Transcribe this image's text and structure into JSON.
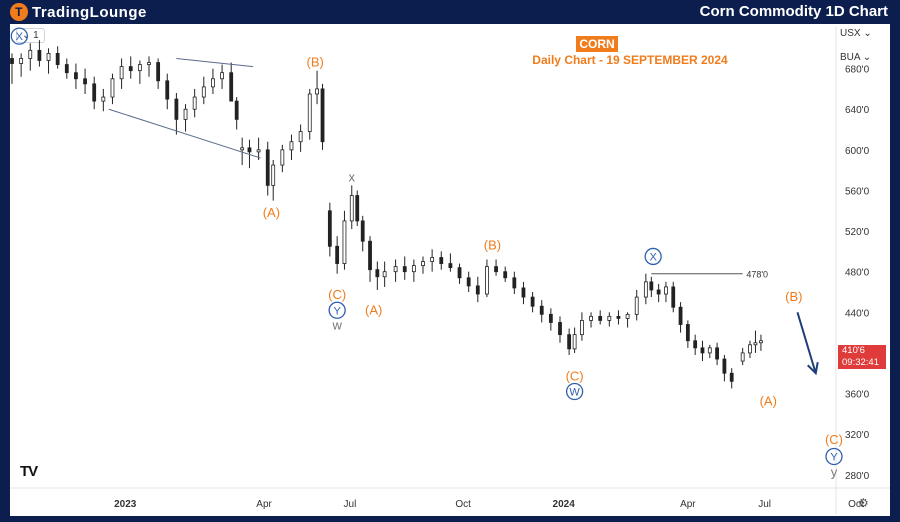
{
  "brand": {
    "part1": "TradingLounge",
    "logo_mark": "T"
  },
  "header": {
    "title": "Corn Commodity 1D Chart"
  },
  "toolbar": {
    "interval": "1",
    "currency": "USX",
    "unit": "BUA"
  },
  "chart_data": {
    "type": "candlestick",
    "title": "CORN",
    "subtitle": "Daily Chart - 19 SEPTEMBER 2024",
    "x_ticks": [
      "2023",
      "Apr",
      "Jul",
      "Oct",
      "2024",
      "Apr",
      "Jul",
      "Oct"
    ],
    "y_ticks": [
      "680'0",
      "640'0",
      "600'0",
      "560'0",
      "520'0",
      "480'0",
      "440'0",
      "400'0",
      "360'0",
      "320'0",
      "280'0"
    ],
    "ylim": [
      265,
      720
    ],
    "grid": false,
    "current_price": {
      "value": 410.75,
      "label": "410'6",
      "countdown": "09:32:41",
      "color": "#e03b3b"
    },
    "level_line": {
      "value": 478,
      "label": "478'0"
    },
    "series": [
      {
        "values": [
          [
            0,
            690,
            695,
            665,
            685
          ],
          [
            5,
            685,
            695,
            672,
            690
          ],
          [
            10,
            690,
            705,
            678,
            698
          ],
          [
            15,
            698,
            708,
            682,
            688
          ],
          [
            20,
            688,
            700,
            675,
            695
          ],
          [
            25,
            695,
            702,
            680,
            684
          ],
          [
            30,
            684,
            690,
            670,
            676
          ],
          [
            35,
            676,
            685,
            660,
            670
          ],
          [
            40,
            670,
            680,
            655,
            665
          ],
          [
            45,
            665,
            672,
            640,
            648
          ],
          [
            50,
            648,
            660,
            638,
            652
          ],
          [
            55,
            652,
            675,
            645,
            670
          ],
          [
            60,
            670,
            690,
            660,
            682
          ],
          [
            65,
            682,
            692,
            670,
            678
          ],
          [
            70,
            678,
            688,
            665,
            684
          ],
          [
            75,
            684,
            692,
            672,
            686
          ],
          [
            80,
            686,
            690,
            660,
            668
          ],
          [
            85,
            668,
            675,
            640,
            650
          ],
          [
            90,
            650,
            656,
            615,
            630
          ],
          [
            95,
            630,
            645,
            618,
            640
          ],
          [
            100,
            640,
            660,
            632,
            652
          ],
          [
            105,
            652,
            672,
            645,
            662
          ],
          [
            110,
            662,
            680,
            655,
            670
          ],
          [
            115,
            670,
            684,
            660,
            676
          ],
          [
            120,
            676,
            686,
            655,
            648
          ],
          [
            123,
            648,
            652,
            620,
            630
          ],
          [
            126,
            600,
            612,
            585,
            602
          ],
          [
            130,
            602,
            610,
            582,
            598
          ],
          [
            135,
            598,
            612,
            590,
            600
          ],
          [
            140,
            600,
            608,
            555,
            565
          ],
          [
            143,
            565,
            590,
            550,
            585
          ],
          [
            148,
            585,
            605,
            578,
            600
          ],
          [
            153,
            600,
            615,
            590,
            608
          ],
          [
            158,
            608,
            625,
            598,
            618
          ],
          [
            163,
            618,
            660,
            610,
            655
          ],
          [
            167,
            655,
            678,
            645,
            660
          ],
          [
            170,
            660,
            665,
            600,
            608
          ],
          [
            174,
            540,
            548,
            495,
            505
          ],
          [
            178,
            505,
            515,
            478,
            488
          ],
          [
            182,
            488,
            540,
            482,
            530
          ],
          [
            186,
            530,
            565,
            522,
            555
          ],
          [
            189,
            555,
            560,
            525,
            530
          ],
          [
            192,
            530,
            535,
            500,
            510
          ],
          [
            196,
            510,
            515,
            470,
            482
          ],
          [
            200,
            482,
            490,
            462,
            475
          ],
          [
            204,
            475,
            490,
            465,
            480
          ],
          [
            210,
            480,
            492,
            470,
            485
          ],
          [
            215,
            485,
            495,
            472,
            480
          ],
          [
            220,
            480,
            492,
            470,
            486
          ],
          [
            225,
            486,
            495,
            478,
            490
          ],
          [
            230,
            490,
            502,
            480,
            494
          ],
          [
            235,
            494,
            500,
            482,
            488
          ],
          [
            240,
            488,
            498,
            480,
            484
          ],
          [
            245,
            484,
            488,
            468,
            474
          ],
          [
            250,
            474,
            480,
            460,
            466
          ],
          [
            255,
            466,
            475,
            450,
            458
          ],
          [
            260,
            458,
            492,
            455,
            485
          ],
          [
            265,
            485,
            492,
            476,
            480
          ],
          [
            270,
            480,
            485,
            470,
            474
          ],
          [
            275,
            474,
            480,
            458,
            464
          ],
          [
            280,
            464,
            470,
            448,
            455
          ],
          [
            285,
            455,
            460,
            440,
            446
          ],
          [
            290,
            446,
            452,
            430,
            438
          ],
          [
            295,
            438,
            444,
            422,
            430
          ],
          [
            300,
            430,
            436,
            410,
            418
          ],
          [
            305,
            418,
            424,
            398,
            404
          ],
          [
            308,
            404,
            425,
            400,
            418
          ],
          [
            312,
            418,
            440,
            412,
            432
          ],
          [
            317,
            432,
            440,
            425,
            436
          ],
          [
            322,
            436,
            442,
            428,
            432
          ],
          [
            327,
            432,
            440,
            426,
            436
          ],
          [
            332,
            436,
            442,
            428,
            434
          ],
          [
            337,
            434,
            440,
            425,
            438
          ],
          [
            342,
            438,
            462,
            432,
            455
          ],
          [
            347,
            455,
            478,
            448,
            470
          ],
          [
            350,
            470,
            475,
            455,
            462
          ],
          [
            354,
            462,
            468,
            450,
            458
          ],
          [
            358,
            458,
            470,
            450,
            465
          ],
          [
            362,
            465,
            470,
            440,
            445
          ],
          [
            366,
            445,
            450,
            420,
            428
          ],
          [
            370,
            428,
            432,
            405,
            412
          ],
          [
            374,
            412,
            418,
            398,
            405
          ],
          [
            378,
            405,
            412,
            392,
            400
          ],
          [
            382,
            400,
            408,
            395,
            405
          ],
          [
            386,
            405,
            410,
            388,
            394
          ],
          [
            390,
            394,
            398,
            372,
            380
          ],
          [
            394,
            380,
            385,
            365,
            372
          ],
          [
            400,
            392,
            405,
            388,
            400
          ],
          [
            404,
            400,
            412,
            395,
            408
          ],
          [
            407,
            408,
            422,
            400,
            410
          ],
          [
            410,
            410,
            418,
            402,
            412
          ]
        ]
      }
    ],
    "annotations": [
      {
        "label": "X",
        "style": "circle",
        "color": "#2f5fb0",
        "x": 4,
        "y": 712
      },
      {
        "label": "(B)",
        "style": "plain",
        "color": "#f07c1c",
        "x": 166,
        "y": 686
      },
      {
        "label": "(A)",
        "style": "plain",
        "color": "#f07c1c",
        "x": 142,
        "y": 538
      },
      {
        "label": "x",
        "style": "plain",
        "color": "#777777",
        "x": 186,
        "y": 573
      },
      {
        "label": "(C)",
        "style": "plain",
        "color": "#f07c1c",
        "x": 178,
        "y": 457
      },
      {
        "label": "Y",
        "style": "circle",
        "color": "#2f5fb0",
        "x": 178,
        "y": 442
      },
      {
        "label": "w",
        "style": "plain",
        "color": "#777777",
        "x": 178,
        "y": 427
      },
      {
        "label": "(A)",
        "style": "plain",
        "color": "#f07c1c",
        "x": 198,
        "y": 442
      },
      {
        "label": "(B)",
        "style": "plain",
        "color": "#f07c1c",
        "x": 263,
        "y": 506
      },
      {
        "label": "(C)",
        "style": "plain",
        "color": "#f07c1c",
        "x": 308,
        "y": 377
      },
      {
        "label": "W",
        "style": "circle",
        "color": "#2f5fb0",
        "x": 308,
        "y": 362
      },
      {
        "label": "X",
        "style": "circle",
        "color": "#2f5fb0",
        "x": 351,
        "y": 495
      },
      {
        "label": "(B)",
        "style": "plain",
        "color": "#f07c1c",
        "x": 428,
        "y": 455
      },
      {
        "label": "(A)",
        "style": "plain",
        "color": "#f07c1c",
        "x": 414,
        "y": 352
      },
      {
        "label": "(C)",
        "style": "plain",
        "color": "#f07c1c",
        "x": 450,
        "y": 314
      },
      {
        "label": "Y",
        "style": "circle",
        "color": "#2f5fb0",
        "x": 450,
        "y": 298
      },
      {
        "label": "y",
        "style": "plain",
        "color": "#777777",
        "x": 450,
        "y": 282
      }
    ],
    "trendlines": [
      {
        "from": [
          90,
          690
        ],
        "to": [
          132,
          682
        ]
      },
      {
        "from": [
          53,
          640
        ],
        "to": [
          136,
          592
        ]
      }
    ],
    "projection": {
      "from": [
        430,
        440
      ],
      "to": [
        440,
        380
      ]
    }
  }
}
